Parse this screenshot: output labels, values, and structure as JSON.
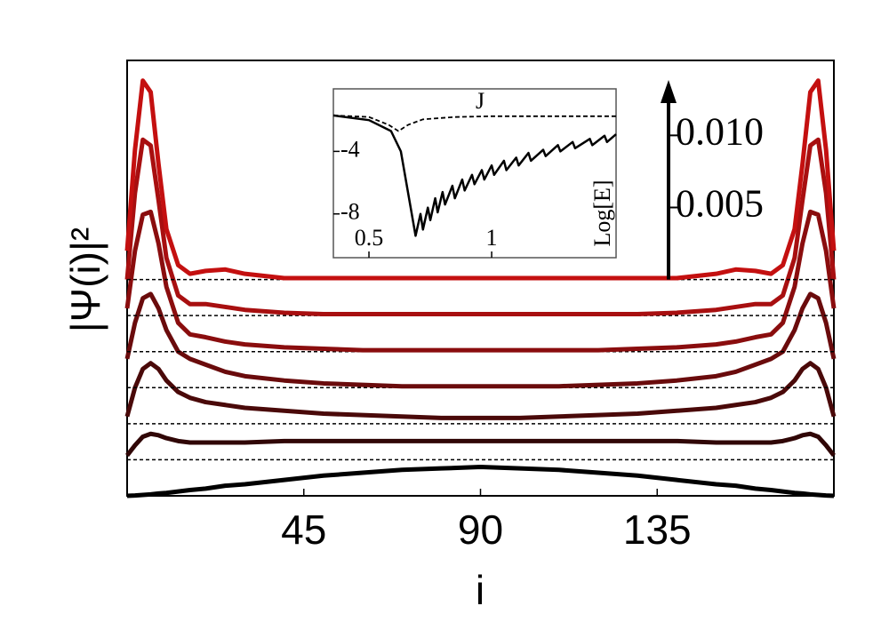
{
  "chart_data": [
    {
      "type": "line",
      "xlabel": "i",
      "ylabel": "|Ψ(i)|²",
      "x": [
        0,
        2,
        4,
        6,
        8,
        10,
        13,
        16,
        20,
        25,
        30,
        40,
        50,
        60,
        70,
        80,
        90,
        100,
        110,
        120,
        130,
        140,
        150,
        155,
        160,
        164,
        167,
        170,
        172,
        174,
        176,
        178,
        180
      ],
      "xlim": [
        0,
        180
      ],
      "xticks": [
        45,
        90,
        135
      ],
      "ylim": [
        0,
        0.0302
      ],
      "scale_bar": {
        "ticks": [
          {
            "value": 0.005,
            "label": "0.005"
          },
          {
            "value": 0.01,
            "label": "0.010"
          }
        ]
      },
      "series": [
        {
          "color": "#000000",
          "offset": 0,
          "values": [
            0,
            2e-05,
            6e-05,
            0.0001,
            0.00016,
            0.0002,
            0.0003,
            0.0004,
            0.0005,
            0.0007,
            0.0008,
            0.0011,
            0.0014,
            0.0016,
            0.0018,
            0.0019,
            0.002,
            0.0019,
            0.0018,
            0.0016,
            0.0014,
            0.0011,
            0.0008,
            0.0007,
            0.0005,
            0.0004,
            0.0003,
            0.0002,
            0.00016,
            0.0001,
            6e-05,
            2e-05,
            0
          ]
        },
        {
          "color": "#300606",
          "offset": 0.0025,
          "values": [
            0.0003,
            0.001,
            0.0016,
            0.0018,
            0.0017,
            0.0015,
            0.0013,
            0.0012,
            0.0012,
            0.0012,
            0.0012,
            0.0013,
            0.0013,
            0.0013,
            0.0013,
            0.0013,
            0.0013,
            0.0013,
            0.0013,
            0.0013,
            0.0013,
            0.0013,
            0.0012,
            0.0012,
            0.0012,
            0.0012,
            0.0013,
            0.0015,
            0.0017,
            0.0018,
            0.0016,
            0.001,
            0.0003
          ]
        },
        {
          "color": "#4a0909",
          "offset": 0.005,
          "values": [
            0.0005,
            0.0025,
            0.0038,
            0.0042,
            0.0038,
            0.003,
            0.0022,
            0.0018,
            0.0015,
            0.0013,
            0.0011,
            0.0009,
            0.0007,
            0.0006,
            0.0005,
            0.0004,
            0.0004,
            0.0004,
            0.0005,
            0.0006,
            0.0007,
            0.0009,
            0.0011,
            0.0013,
            0.0015,
            0.0018,
            0.0022,
            0.003,
            0.0038,
            0.0042,
            0.0038,
            0.0025,
            0.0005
          ]
        },
        {
          "color": "#6a0b0c",
          "offset": 0.0075,
          "values": [
            0.002,
            0.0045,
            0.0062,
            0.0065,
            0.0055,
            0.004,
            0.0025,
            0.002,
            0.0016,
            0.0011,
            0.0008,
            0.0005,
            0.0003,
            0.0002,
            0.0001,
            0.0001,
            0.0001,
            0.0001,
            0.0001,
            0.0002,
            0.0003,
            0.0005,
            0.0008,
            0.0011,
            0.0016,
            0.002,
            0.0025,
            0.004,
            0.0055,
            0.0065,
            0.0062,
            0.0045,
            0.002
          ]
        },
        {
          "color": "#8a0d0e",
          "offset": 0.01,
          "values": [
            0.003,
            0.007,
            0.0095,
            0.0097,
            0.0075,
            0.0045,
            0.002,
            0.0012,
            0.001,
            0.0007,
            0.0005,
            0.0003,
            0.0002,
            0.0001,
            0.0001,
            0.0001,
            0.0001,
            0.0001,
            0.0001,
            0.0001,
            0.0002,
            0.0003,
            0.0005,
            0.0007,
            0.001,
            0.0012,
            0.002,
            0.0045,
            0.0075,
            0.0097,
            0.0095,
            0.007,
            0.003
          ]
        },
        {
          "color": "#a80f10",
          "offset": 0.0125,
          "values": [
            0.0025,
            0.0085,
            0.0122,
            0.0118,
            0.008,
            0.004,
            0.0014,
            0.0008,
            0.0008,
            0.0006,
            0.0004,
            0.0002,
            0.0001,
            0.0001,
            0.0001,
            0.0001,
            0.0001,
            0.0001,
            0.0001,
            0.0001,
            0.0001,
            0.0002,
            0.0004,
            0.0006,
            0.0008,
            0.0008,
            0.0014,
            0.004,
            0.008,
            0.0118,
            0.0122,
            0.0085,
            0.0025
          ]
        },
        {
          "color": "#c41010",
          "offset": 0.015,
          "values": [
            0.002,
            0.009,
            0.0138,
            0.013,
            0.008,
            0.0035,
            0.001,
            0.0004,
            0.0006,
            0.0007,
            0.0004,
            0.0001,
            0.0001,
            0.0001,
            0.0001,
            0.0001,
            0.0001,
            0.0001,
            0.0001,
            0.0001,
            0.0001,
            0.0001,
            0.0004,
            0.0007,
            0.0006,
            0.0004,
            0.001,
            0.0035,
            0.008,
            0.013,
            0.0138,
            0.009,
            0.002
          ]
        }
      ]
    },
    {
      "type": "line",
      "xlim": [
        0.355,
        1.507
      ],
      "xticks": [
        0.5,
        1
      ],
      "ylim": [
        -10.8,
        0
      ],
      "yticks": [
        -4,
        -8
      ],
      "series": [
        {
          "name": "J",
          "color": "#000000",
          "dashed": true,
          "x": [
            0.355,
            0.5,
            0.58,
            0.62,
            0.66,
            0.72,
            0.85,
            1.0,
            1.507
          ],
          "values": [
            -1.7,
            -1.8,
            -2.3,
            -2.7,
            -2.3,
            -1.95,
            -1.8,
            -1.75,
            -1.75
          ]
        },
        {
          "name": "Log[E]",
          "color": "#000000",
          "dashed": false,
          "x": [
            0.355,
            0.5,
            0.59,
            0.63,
            0.69,
            0.71,
            0.72,
            0.74,
            0.75,
            0.77,
            0.78,
            0.8,
            0.81,
            0.84,
            0.85,
            0.88,
            0.89,
            0.92,
            0.93,
            0.96,
            0.97,
            1.0,
            1.01,
            1.05,
            1.06,
            1.1,
            1.11,
            1.15,
            1.16,
            1.21,
            1.22,
            1.27,
            1.28,
            1.33,
            1.34,
            1.4,
            1.41,
            1.46,
            1.47,
            1.507
          ],
          "values": [
            -1.7,
            -2.0,
            -2.7,
            -4.0,
            -9.4,
            -8.0,
            -9.0,
            -7.6,
            -8.4,
            -7.0,
            -7.9,
            -6.6,
            -7.4,
            -6.2,
            -7.0,
            -5.8,
            -6.5,
            -5.5,
            -6.1,
            -5.2,
            -5.8,
            -4.9,
            -5.5,
            -4.6,
            -5.2,
            -4.4,
            -4.9,
            -4.1,
            -4.6,
            -3.9,
            -4.3,
            -3.6,
            -4.0,
            -3.4,
            -3.8,
            -3.2,
            -3.6,
            -3.0,
            -3.4,
            -2.9
          ]
        }
      ]
    }
  ]
}
